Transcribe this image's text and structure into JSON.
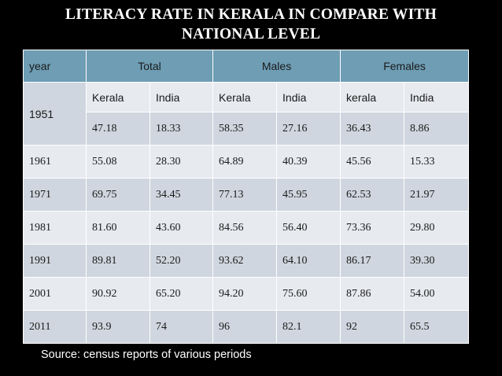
{
  "title_line1": "LITERACY RATE IN KERALA IN COMPARE WITH",
  "title_line2": "NATIONAL  LEVEL",
  "header": {
    "year": "year",
    "total": "Total",
    "males": "Males",
    "females": "Females"
  },
  "subheader": [
    "Kerala",
    "India",
    "Kerala",
    "India",
    "kerala",
    "India"
  ],
  "rows": [
    {
      "year": "1951",
      "values": [
        "47.18",
        "18.33",
        "58.35",
        "27.16",
        "36.43",
        "8.86"
      ]
    },
    {
      "year": "1961",
      "values": [
        "55.08",
        "28.30",
        "64.89",
        "40.39",
        "45.56",
        "15.33"
      ]
    },
    {
      "year": "1971",
      "values": [
        "69.75",
        "34.45",
        "77.13",
        "45.95",
        "62.53",
        "21.97"
      ]
    },
    {
      "year": "1981",
      "values": [
        "81.60",
        "43.60",
        "84.56",
        "56.40",
        "73.36",
        "29.80"
      ]
    },
    {
      "year": "1991",
      "values": [
        "89.81",
        "52.20",
        "93.62",
        "64.10",
        "86.17",
        "39.30"
      ]
    },
    {
      "year": "2001",
      "values": [
        "90.92",
        "65.20",
        "94.20",
        "75.60",
        "87.86",
        "54.00"
      ]
    },
    {
      "year": "2011",
      "values": [
        "93.9",
        "74",
        "96",
        "82.1",
        "92",
        "65.5"
      ]
    }
  ],
  "source": "Source: census reports of various periods",
  "colors": {
    "header_bg": "#6e9db4",
    "row_light": "#e7eaef",
    "row_dark": "#cfd6df",
    "background": "#000000"
  }
}
